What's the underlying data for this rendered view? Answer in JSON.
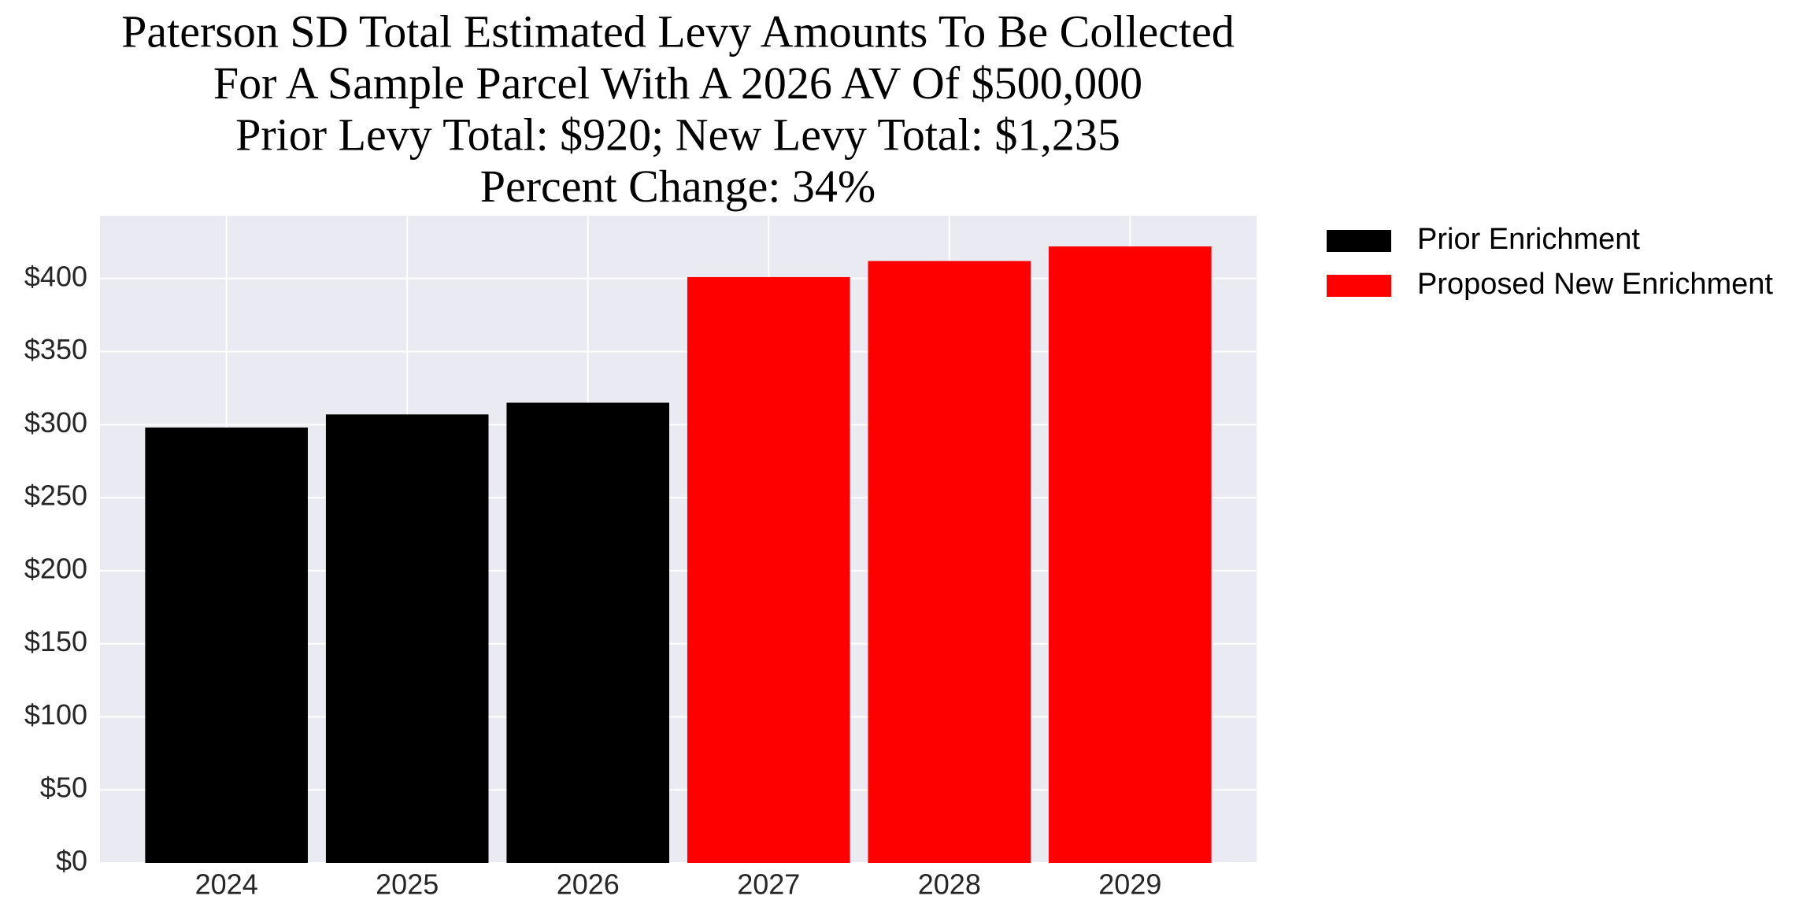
{
  "chart_data": {
    "type": "bar",
    "title": [
      "Paterson SD Total Estimated Levy Amounts To Be Collected",
      "For A Sample Parcel With A 2026 AV Of $500,000",
      "Prior Levy Total:  $920; New Levy Total: $1,235",
      "Percent Change: 34%"
    ],
    "categories": [
      "2024",
      "2025",
      "2026",
      "2027",
      "2028",
      "2029"
    ],
    "series": [
      {
        "name": "Prior Enrichment",
        "color": "#000000",
        "values": [
          298,
          307,
          315,
          null,
          null,
          null
        ]
      },
      {
        "name": "Proposed New Enrichment",
        "color": "#ff0000",
        "values": [
          null,
          null,
          null,
          401,
          412,
          422
        ]
      }
    ],
    "ylim": [
      0,
      443
    ],
    "yticks": [
      {
        "value": 0,
        "label": "$0"
      },
      {
        "value": 50,
        "label": "$50"
      },
      {
        "value": 100,
        "label": "$100"
      },
      {
        "value": 150,
        "label": "$150"
      },
      {
        "value": 200,
        "label": "$200"
      },
      {
        "value": 250,
        "label": "$250"
      },
      {
        "value": 300,
        "label": "$300"
      },
      {
        "value": 350,
        "label": "$350"
      },
      {
        "value": 400,
        "label": "$400"
      }
    ],
    "grid": true,
    "background": "#eaeaf2",
    "legend": "outside-upper-right"
  }
}
